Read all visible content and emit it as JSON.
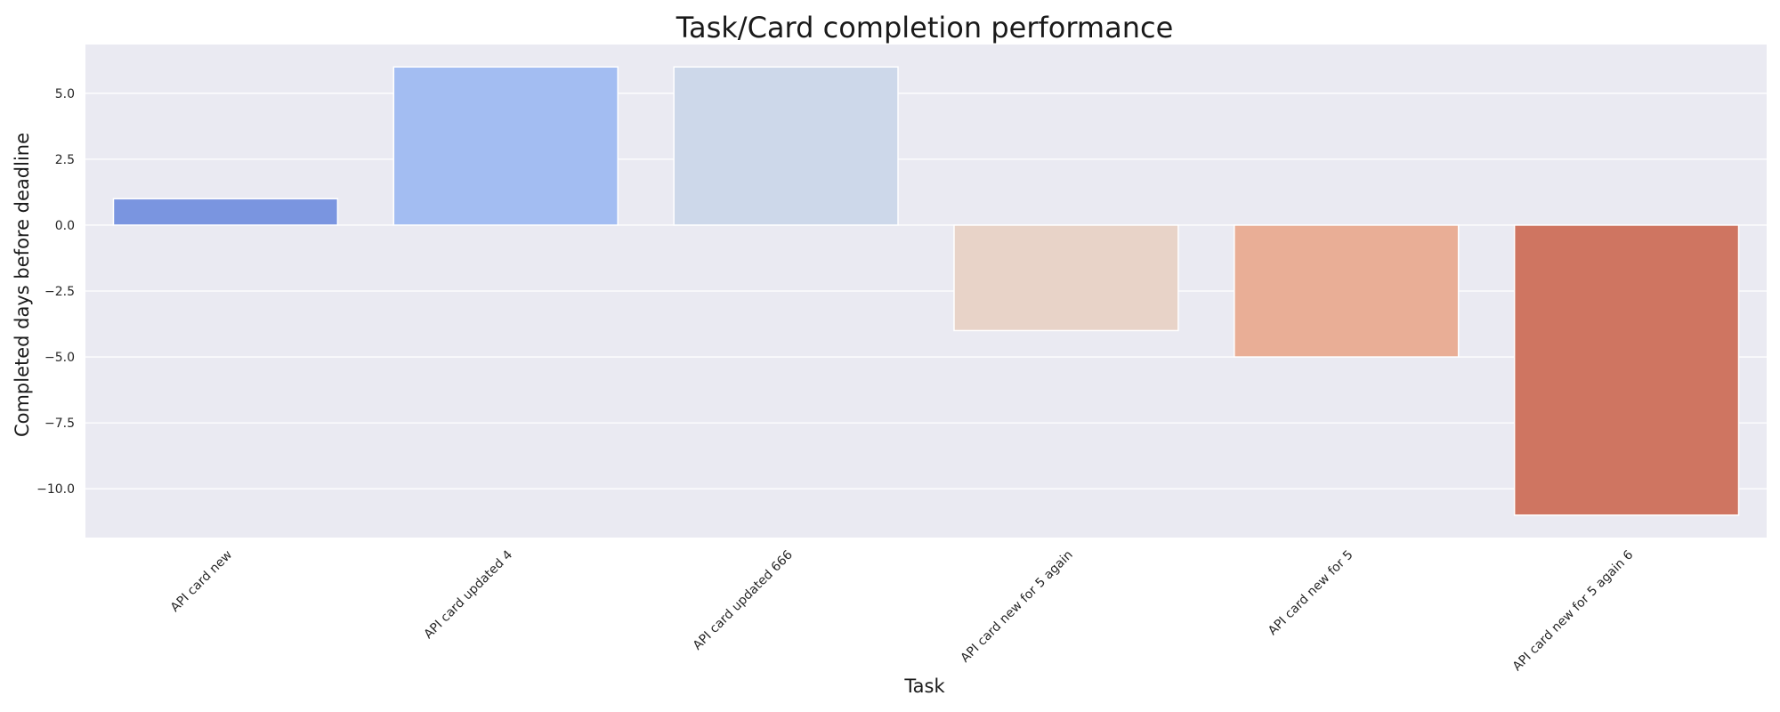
{
  "chart_data": {
    "type": "bar",
    "title": "Task/Card completion performance",
    "xlabel": "Task",
    "ylabel": "Completed days before deadline",
    "categories": [
      "API card new",
      "API card updated 4",
      "API card updated 666",
      "API card new for 5 again",
      "API card new for 5",
      "API card new for 5 again 6"
    ],
    "values": [
      1,
      6,
      6,
      -4,
      -5,
      -11
    ],
    "colors": [
      "#7a95e0",
      "#a3bdf2",
      "#cdd8ea",
      "#e8d3c8",
      "#e9ae96",
      "#cf7561"
    ],
    "yticks": [
      -10.0,
      -7.5,
      -5.0,
      -2.5,
      0.0,
      2.5,
      5.0
    ],
    "ytick_labels": [
      "−10.0",
      "−7.5",
      "−5.0",
      "−2.5",
      "0.0",
      "2.5",
      "5.0"
    ],
    "ylim": [
      -11.85,
      6.85
    ],
    "grid": true,
    "plot_background": "#eaeaf2",
    "grid_color": "#ffffff"
  }
}
